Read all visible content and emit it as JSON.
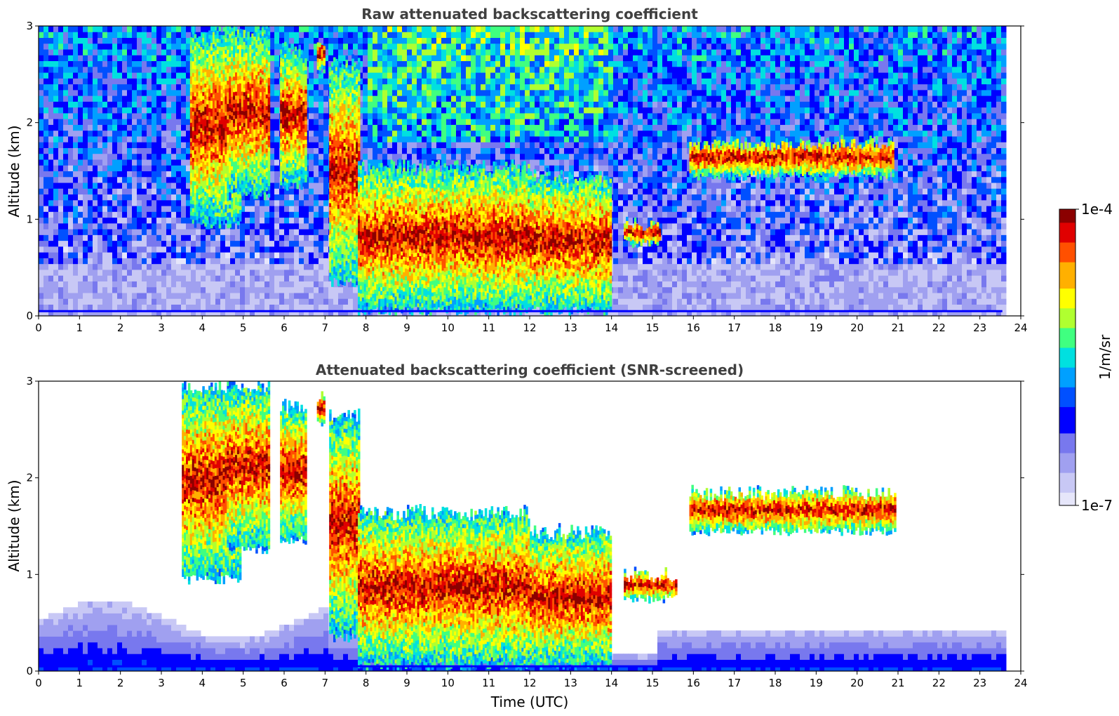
{
  "chart_data": [
    {
      "type": "heatmap",
      "title": "Raw attenuated backscattering coefficient",
      "xlabel": "",
      "ylabel": "Altitude (km)",
      "xlim": [
        0,
        24
      ],
      "ylim": [
        0,
        3
      ],
      "xticks": [
        0,
        1,
        2,
        3,
        4,
        5,
        6,
        7,
        8,
        9,
        10,
        11,
        12,
        13,
        14,
        15,
        16,
        17,
        18,
        19,
        20,
        21,
        22,
        23,
        24
      ],
      "yticks": [
        0,
        1,
        2,
        3
      ],
      "data_extent_hours": [
        0,
        23.55
      ],
      "screened": false,
      "cloud_features": [
        {
          "t_start": 3.7,
          "t_end": 4.9,
          "alt_bottom": 0.9,
          "alt_top": 3.0
        },
        {
          "t_start": 4.6,
          "t_end": 5.6,
          "alt_bottom": 1.2,
          "alt_top": 3.0
        },
        {
          "t_start": 5.9,
          "t_end": 6.5,
          "alt_bottom": 1.3,
          "alt_top": 2.8
        },
        {
          "t_start": 6.8,
          "t_end": 6.95,
          "alt_bottom": 2.5,
          "alt_top": 2.9
        },
        {
          "t_start": 7.1,
          "t_end": 7.8,
          "alt_bottom": 0.3,
          "alt_top": 2.7
        },
        {
          "t_start": 7.8,
          "t_end": 12.0,
          "alt_bottom": 0.0,
          "alt_top": 1.6
        },
        {
          "t_start": 12.0,
          "t_end": 14.0,
          "alt_bottom": 0.0,
          "alt_top": 1.5
        },
        {
          "t_start": 14.3,
          "t_end": 15.2,
          "alt_bottom": 0.7,
          "alt_top": 1.0
        },
        {
          "t_start": 15.9,
          "t_end": 20.9,
          "alt_bottom": 1.4,
          "alt_top": 1.85
        }
      ]
    },
    {
      "type": "heatmap",
      "title": "Attenuated backscattering coefficient (SNR-screened)",
      "xlabel": "Time (UTC)",
      "ylabel": "Altitude (km)",
      "xlim": [
        0,
        24
      ],
      "ylim": [
        0,
        3
      ],
      "xticks": [
        0,
        1,
        2,
        3,
        4,
        5,
        6,
        7,
        8,
        9,
        10,
        11,
        12,
        13,
        14,
        15,
        16,
        17,
        18,
        19,
        20,
        21,
        22,
        23,
        24
      ],
      "yticks": [
        0,
        1,
        2,
        3
      ],
      "data_extent_hours": [
        0,
        23.55
      ],
      "screened": true,
      "cloud_features": [
        {
          "t_start": 3.5,
          "t_end": 4.9,
          "alt_bottom": 0.9,
          "alt_top": 3.0
        },
        {
          "t_start": 4.6,
          "t_end": 5.6,
          "alt_bottom": 1.2,
          "alt_top": 3.0
        },
        {
          "t_start": 5.9,
          "t_end": 6.5,
          "alt_bottom": 1.3,
          "alt_top": 2.8
        },
        {
          "t_start": 6.8,
          "t_end": 6.95,
          "alt_bottom": 2.5,
          "alt_top": 2.9
        },
        {
          "t_start": 7.1,
          "t_end": 7.8,
          "alt_bottom": 0.3,
          "alt_top": 2.7
        },
        {
          "t_start": 7.8,
          "t_end": 12.0,
          "alt_bottom": 0.0,
          "alt_top": 1.7
        },
        {
          "t_start": 12.0,
          "t_end": 14.0,
          "alt_bottom": 0.0,
          "alt_top": 1.5
        },
        {
          "t_start": 14.3,
          "t_end": 15.6,
          "alt_bottom": 0.7,
          "alt_top": 1.05
        },
        {
          "t_start": 15.9,
          "t_end": 20.95,
          "alt_bottom": 1.4,
          "alt_top": 1.9
        }
      ]
    }
  ],
  "colorbar": {
    "label": "1/m/sr",
    "max_label": "1e-4",
    "min_label": "1e-7",
    "scale": "log",
    "range": [
      1e-07,
      0.0001
    ],
    "colormap": "jet",
    "colors": [
      "#e6e6fa",
      "#c8c8f5",
      "#a0a0f0",
      "#7878ee",
      "#0000ff",
      "#0050ff",
      "#00a0ff",
      "#00e0e0",
      "#40ff80",
      "#b0ff30",
      "#ffff00",
      "#ffb000",
      "#ff5000",
      "#e00000",
      "#8b0000"
    ]
  }
}
